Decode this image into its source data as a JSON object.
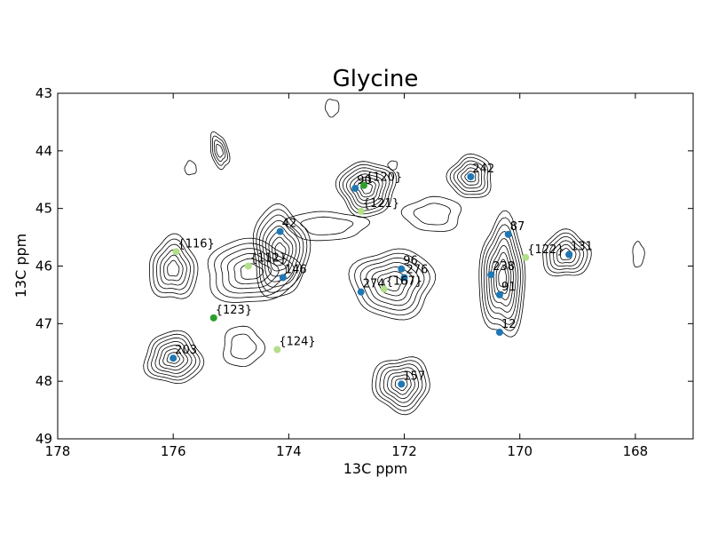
{
  "chart_data": {
    "type": "scatter",
    "title": "Glycine",
    "xlabel": "13C ppm",
    "ylabel": "13C ppm",
    "xlim": [
      178,
      167
    ],
    "ylim": [
      49,
      43
    ],
    "x_axis_inverted": true,
    "y_axis_inverted": true,
    "grid": false,
    "x_ticks": [
      178,
      176,
      174,
      172,
      170,
      168
    ],
    "y_ticks": [
      43,
      44,
      45,
      46,
      47,
      48,
      49
    ],
    "contour_color": "#000000",
    "series": [
      {
        "color": "#1f77b4",
        "points": [
          {
            "label": "90",
            "x": 172.85,
            "y": 44.65
          },
          {
            "label": "242",
            "x": 170.85,
            "y": 44.45
          },
          {
            "label": "42",
            "x": 174.15,
            "y": 45.4
          },
          {
            "label": "87",
            "x": 170.2,
            "y": 45.45
          },
          {
            "label": "131",
            "x": 169.15,
            "y": 45.8
          },
          {
            "label": "96",
            "x": 172.05,
            "y": 46.05
          },
          {
            "label": "276",
            "x": 172.0,
            "y": 46.2
          },
          {
            "label": "238",
            "x": 170.5,
            "y": 46.15
          },
          {
            "label": "146",
            "x": 174.1,
            "y": 46.2
          },
          {
            "label": "274",
            "x": 172.75,
            "y": 46.45
          },
          {
            "label": "91",
            "x": 170.35,
            "y": 46.5
          },
          {
            "label": "12",
            "x": 170.35,
            "y": 47.15
          },
          {
            "label": "203",
            "x": 176.0,
            "y": 47.6
          },
          {
            "label": "157",
            "x": 172.05,
            "y": 48.05
          }
        ]
      },
      {
        "color": "#2ca02c",
        "points": [
          {
            "label": "{120}",
            "x": 172.7,
            "y": 44.6
          },
          {
            "label": "{123}",
            "x": 175.3,
            "y": 46.9
          }
        ]
      },
      {
        "color": "#b2df8a",
        "points": [
          {
            "label": "{121}",
            "x": 172.75,
            "y": 45.05
          },
          {
            "label": "{116}",
            "x": 175.95,
            "y": 45.75
          },
          {
            "label": "{112}",
            "x": 174.7,
            "y": 46.0
          },
          {
            "label": "{122}",
            "x": 169.9,
            "y": 45.85
          },
          {
            "label": "{167}",
            "x": 172.35,
            "y": 46.4
          },
          {
            "label": "{124}",
            "x": 174.2,
            "y": 47.45
          }
        ]
      }
    ]
  }
}
